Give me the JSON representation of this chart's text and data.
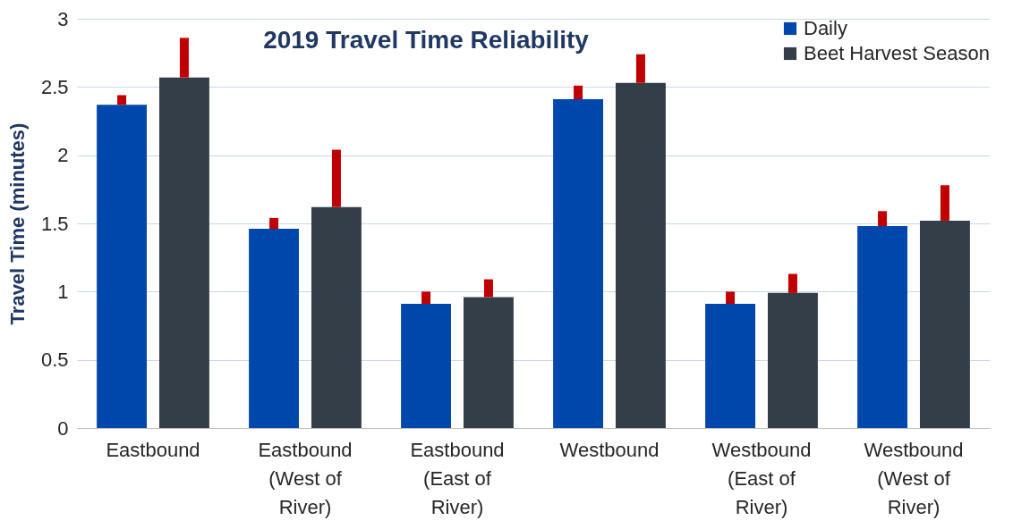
{
  "chart_data": {
    "type": "bar",
    "title": "2019 Travel Time Reliability",
    "ylabel": "Travel Time (minutes)",
    "categories": [
      "Eastbound",
      "Eastbound (West of River)",
      "Eastbound (East of River)",
      "Westbound",
      "Westbound (East of River)",
      "Westbound (West of River)"
    ],
    "series": [
      {
        "name": "Daily",
        "color": "#0047ab",
        "values": [
          2.37,
          1.46,
          0.91,
          2.41,
          0.91,
          1.48
        ],
        "errors": [
          [
            2.37,
            2.44
          ],
          [
            1.46,
            1.54
          ],
          [
            0.91,
            1.0
          ],
          [
            2.41,
            2.51
          ],
          [
            0.91,
            1.0
          ],
          [
            1.48,
            1.59
          ]
        ]
      },
      {
        "name": "Beet Harvest Season",
        "color": "#343e48",
        "values": [
          2.57,
          1.62,
          0.96,
          2.53,
          0.99,
          1.52
        ],
        "errors": [
          [
            2.57,
            2.86
          ],
          [
            1.62,
            2.04
          ],
          [
            0.96,
            1.09
          ],
          [
            2.53,
            2.74
          ],
          [
            0.99,
            1.13
          ],
          [
            1.52,
            1.78
          ]
        ]
      }
    ],
    "ylim": [
      0,
      3
    ],
    "yticks": [
      0,
      0.5,
      1,
      1.5,
      2,
      2.5,
      3
    ],
    "grid": "y",
    "legend": "top right"
  }
}
